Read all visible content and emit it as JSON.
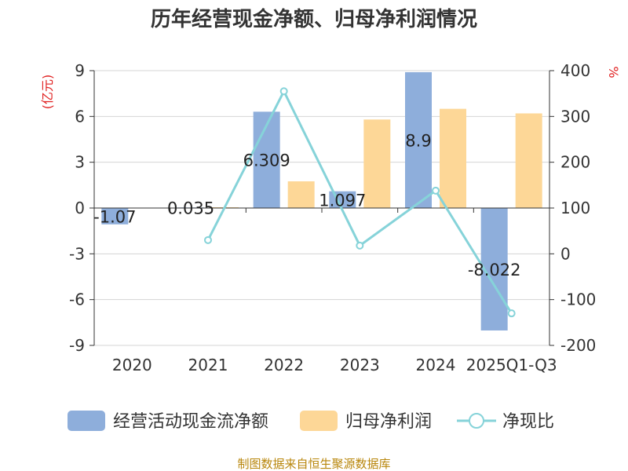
{
  "chart_data": {
    "type": "bar",
    "title": "历年经营现金净额、归母净利润情况",
    "categories": [
      "2020",
      "2021",
      "2022",
      "2023",
      "2024",
      "2025Q1-Q3"
    ],
    "series": [
      {
        "name": "经营活动现金流净额",
        "type": "bar",
        "axis": "left",
        "values": [
          -1.07,
          0.035,
          6.309,
          1.097,
          8.9,
          -8.022
        ],
        "labels": [
          "-1.07",
          "0.035",
          "6.309",
          "1.097",
          "8.9",
          "-8.022"
        ],
        "color": "#8eaedb"
      },
      {
        "name": "归母净利润",
        "type": "bar",
        "axis": "left",
        "values": [
          0.02,
          0.05,
          1.75,
          5.8,
          6.5,
          6.2
        ],
        "color": "#fdd797"
      },
      {
        "name": "净现比",
        "type": "line",
        "axis": "right",
        "values": [
          null,
          30,
          355,
          18,
          138,
          -130
        ],
        "color": "#86d3d9"
      }
    ],
    "left_axis": {
      "unit": "(亿元)",
      "min": -9,
      "max": 9,
      "ticks": [
        "-9",
        "-6",
        "-3",
        "0",
        "3",
        "6",
        "9"
      ]
    },
    "right_axis": {
      "unit": "%",
      "min": -200,
      "max": 400,
      "ticks": [
        "-200",
        "-100",
        "0",
        "100",
        "200",
        "300",
        "400"
      ]
    },
    "grid": true,
    "legend_position": "bottom",
    "unit_color": "#e02020"
  },
  "source": {
    "text": "制图数据来自恒生聚源数据库",
    "color": "#b8860b"
  }
}
